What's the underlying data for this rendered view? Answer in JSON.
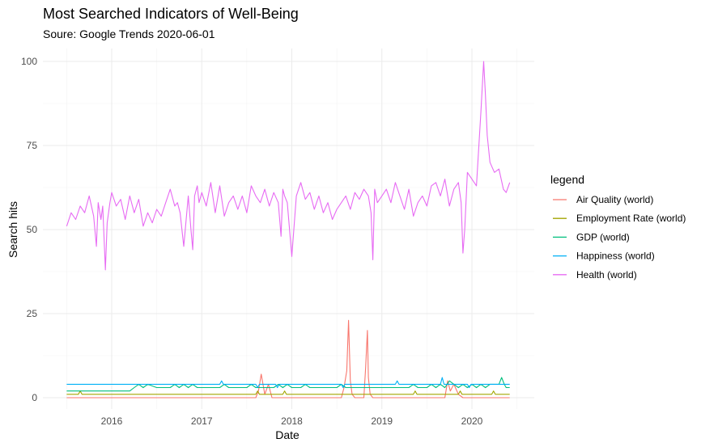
{
  "chart_data": {
    "type": "line",
    "title": "Most Searched Indicators of Well-Being",
    "subtitle": "Soure: Google Trends 2020-06-01",
    "xlabel": "Date",
    "ylabel": "Search hits",
    "xlim": [
      2015.5,
      2020.42
    ],
    "ylim": [
      0,
      100
    ],
    "x_ticks": [
      2016,
      2017,
      2018,
      2019,
      2020
    ],
    "x_tick_labels": [
      "2016",
      "2017",
      "2018",
      "2019",
      "2020"
    ],
    "y_ticks": [
      0,
      25,
      50,
      75,
      100
    ],
    "y_tick_labels": [
      "0",
      "25",
      "50",
      "75",
      "100"
    ],
    "legend_title": "legend",
    "legend_position": "right",
    "series": [
      {
        "name": "Air Quality (world)",
        "color": "#F8766D",
        "x": [
          2015.5,
          2017.6,
          2017.63,
          2017.66,
          2017.7,
          2017.74,
          2017.78,
          2017.82,
          2018.0,
          2018.55,
          2018.58,
          2018.61,
          2018.63,
          2018.65,
          2018.67,
          2018.7,
          2018.73,
          2018.8,
          2018.82,
          2018.84,
          2018.85,
          2018.87,
          2018.9,
          2019.7,
          2019.73,
          2019.76,
          2019.8,
          2019.85,
          2019.9,
          2020.42
        ],
        "y": [
          0,
          0,
          2,
          7,
          1,
          4,
          0,
          0,
          0,
          0,
          3,
          8,
          23,
          5,
          1,
          0,
          0,
          0,
          9,
          20,
          6,
          1,
          0,
          0,
          5,
          2,
          4,
          1,
          0,
          0
        ]
      },
      {
        "name": "Employment Rate (world)",
        "color": "#A3A500",
        "x": [
          2015.5,
          2015.63,
          2015.65,
          2015.67,
          2017.6,
          2017.62,
          2017.64,
          2017.9,
          2017.92,
          2017.94,
          2019.35,
          2019.37,
          2019.39,
          2019.85,
          2019.87,
          2019.89,
          2020.22,
          2020.24,
          2020.26,
          2020.42
        ],
        "y": [
          1,
          1,
          2,
          1,
          1,
          2,
          1,
          1,
          2,
          1,
          1,
          2,
          1,
          1,
          2,
          1,
          1,
          2,
          1,
          1
        ]
      },
      {
        "name": "GDP (world)",
        "color": "#00BF7D",
        "x": [
          2015.5,
          2016.2,
          2016.25,
          2016.3,
          2016.35,
          2016.4,
          2016.5,
          2016.65,
          2016.7,
          2016.75,
          2016.8,
          2016.85,
          2016.9,
          2016.95,
          2017.2,
          2017.25,
          2017.3,
          2017.5,
          2017.55,
          2017.6,
          2017.8,
          2017.85,
          2017.9,
          2017.95,
          2018.0,
          2018.1,
          2018.15,
          2018.2,
          2018.5,
          2018.55,
          2018.6,
          2018.8,
          2019.0,
          2019.2,
          2019.3,
          2019.35,
          2019.4,
          2019.5,
          2019.55,
          2019.6,
          2019.65,
          2019.7,
          2019.75,
          2019.8,
          2019.85,
          2019.9,
          2019.95,
          2020.0,
          2020.05,
          2020.1,
          2020.15,
          2020.2,
          2020.25,
          2020.3,
          2020.33,
          2020.36,
          2020.38,
          2020.42
        ],
        "y": [
          2,
          2,
          3,
          4,
          3,
          4,
          3,
          3,
          4,
          3,
          4,
          3,
          4,
          3,
          3,
          4,
          3,
          3,
          4,
          3,
          3,
          4,
          3,
          4,
          3,
          3,
          4,
          3,
          3,
          4,
          3,
          3,
          3,
          3,
          3,
          4,
          3,
          3,
          4,
          3,
          4,
          3,
          5,
          4,
          3,
          4,
          3,
          4,
          3,
          4,
          3,
          4,
          4,
          4,
          6,
          4,
          3,
          3
        ]
      },
      {
        "name": "Happiness (world)",
        "color": "#00B0F6",
        "x": [
          2015.5,
          2015.85,
          2015.9,
          2016.2,
          2016.5,
          2016.7,
          2016.95,
          2017.2,
          2017.22,
          2017.24,
          2017.6,
          2017.62,
          2017.64,
          2017.82,
          2017.84,
          2017.86,
          2018.55,
          2018.57,
          2018.59,
          2019.15,
          2019.17,
          2019.19,
          2019.65,
          2019.67,
          2019.69,
          2019.95,
          2019.97,
          2019.99,
          2020.42
        ],
        "y": [
          4,
          4,
          4,
          4,
          4,
          4,
          4,
          4,
          5,
          4,
          4,
          3,
          4,
          4,
          3,
          4,
          4,
          3,
          4,
          4,
          5,
          4,
          4,
          6,
          4,
          4,
          3,
          4,
          4
        ]
      },
      {
        "name": "Health (world)",
        "color": "#E76BF3",
        "x": [
          2015.5,
          2015.55,
          2015.6,
          2015.65,
          2015.7,
          2015.75,
          2015.8,
          2015.83,
          2015.85,
          2015.88,
          2015.9,
          2015.93,
          2015.95,
          2015.98,
          2016.0,
          2016.05,
          2016.1,
          2016.15,
          2016.2,
          2016.25,
          2016.3,
          2016.35,
          2016.4,
          2016.45,
          2016.5,
          2016.55,
          2016.6,
          2016.65,
          2016.7,
          2016.73,
          2016.76,
          2016.8,
          2016.85,
          2016.88,
          2016.9,
          2016.92,
          2016.95,
          2016.97,
          2017.0,
          2017.05,
          2017.1,
          2017.15,
          2017.2,
          2017.25,
          2017.3,
          2017.35,
          2017.4,
          2017.45,
          2017.5,
          2017.55,
          2017.6,
          2017.65,
          2017.7,
          2017.75,
          2017.8,
          2017.85,
          2017.88,
          2017.9,
          2017.92,
          2017.95,
          2018.0,
          2018.05,
          2018.1,
          2018.15,
          2018.2,
          2018.25,
          2018.3,
          2018.35,
          2018.4,
          2018.45,
          2018.5,
          2018.55,
          2018.6,
          2018.65,
          2018.7,
          2018.75,
          2018.8,
          2018.85,
          2018.88,
          2018.9,
          2018.92,
          2018.95,
          2019.0,
          2019.05,
          2019.1,
          2019.15,
          2019.2,
          2019.25,
          2019.3,
          2019.35,
          2019.4,
          2019.45,
          2019.5,
          2019.55,
          2019.6,
          2019.65,
          2019.7,
          2019.75,
          2019.8,
          2019.85,
          2019.88,
          2019.9,
          2019.92,
          2019.95,
          2020.0,
          2020.05,
          2020.1,
          2020.13,
          2020.15,
          2020.17,
          2020.2,
          2020.25,
          2020.3,
          2020.35,
          2020.38,
          2020.42
        ],
        "y": [
          51,
          55,
          53,
          57,
          55,
          60,
          54,
          45,
          58,
          53,
          57,
          38,
          52,
          58,
          61,
          57,
          59,
          53,
          60,
          55,
          59,
          51,
          55,
          52,
          56,
          54,
          58,
          62,
          57,
          58,
          55,
          45,
          60,
          50,
          44,
          60,
          63,
          58,
          61,
          57,
          64,
          55,
          63,
          54,
          58,
          60,
          56,
          60,
          55,
          63,
          60,
          58,
          62,
          57,
          61,
          58,
          48,
          62,
          60,
          58,
          42,
          60,
          64,
          59,
          61,
          56,
          60,
          55,
          58,
          53,
          56,
          58,
          60,
          56,
          61,
          59,
          62,
          60,
          55,
          41,
          62,
          58,
          60,
          62,
          58,
          64,
          60,
          56,
          62,
          54,
          58,
          60,
          57,
          63,
          64,
          60,
          65,
          57,
          62,
          64,
          58,
          43,
          50,
          67,
          65,
          63,
          85,
          100,
          90,
          78,
          70,
          67,
          68,
          62,
          61,
          64
        ]
      }
    ]
  }
}
